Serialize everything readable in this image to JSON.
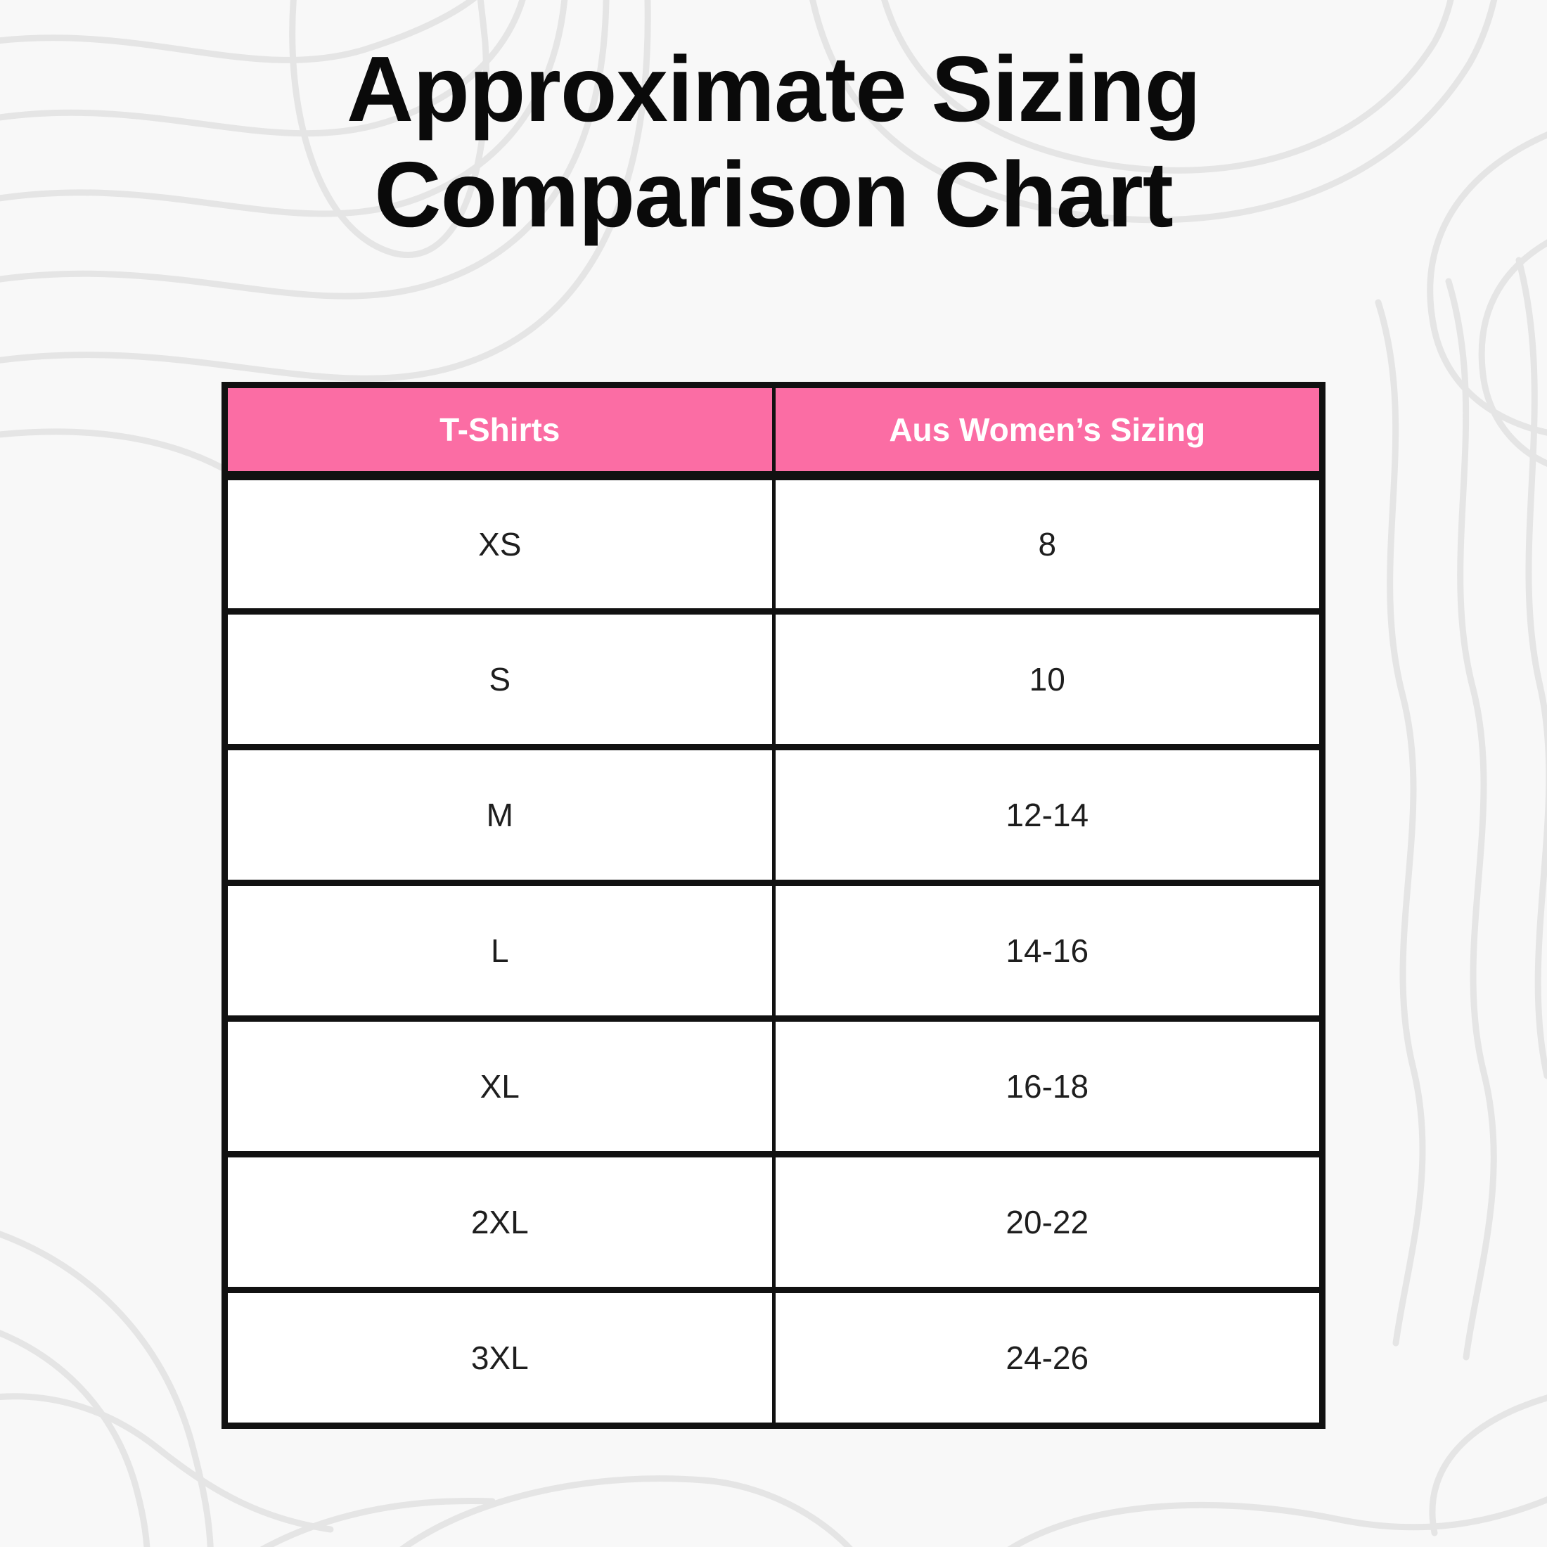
{
  "title": "Approximate Sizing Comparison Chart",
  "colors": {
    "background": "#F8F8F8",
    "contour_lines": "#E5E5E5",
    "header_bg": "#FB6DA4",
    "header_text": "#FFFFFF",
    "border": "#111111",
    "cell_bg": "#FFFFFF",
    "cell_text": "#1E1E1E",
    "title_text": "#0A0A0A"
  },
  "table": {
    "headers": [
      "T-Shirts",
      "Aus Women’s Sizing"
    ],
    "rows": [
      [
        "XS",
        "8"
      ],
      [
        "S",
        "10"
      ],
      [
        "M",
        "12-14"
      ],
      [
        "L",
        "14-16"
      ],
      [
        "XL",
        "16-18"
      ],
      [
        "2XL",
        "20-22"
      ],
      [
        "3XL",
        "24-26"
      ]
    ]
  },
  "chart_data": {
    "type": "table",
    "title": "Approximate Sizing Comparison Chart",
    "columns": [
      "T-Shirts",
      "Aus Women’s Sizing"
    ],
    "rows": [
      [
        "XS",
        "8"
      ],
      [
        "S",
        "10"
      ],
      [
        "M",
        "12-14"
      ],
      [
        "L",
        "14-16"
      ],
      [
        "XL",
        "16-18"
      ],
      [
        "2XL",
        "20-22"
      ],
      [
        "3XL",
        "24-26"
      ]
    ],
    "layout_hints": {
      "header_style": "pink background, white bold text",
      "body_style": "white cells, black borders, centered text",
      "background": "light gray with topographic contour line pattern"
    }
  }
}
